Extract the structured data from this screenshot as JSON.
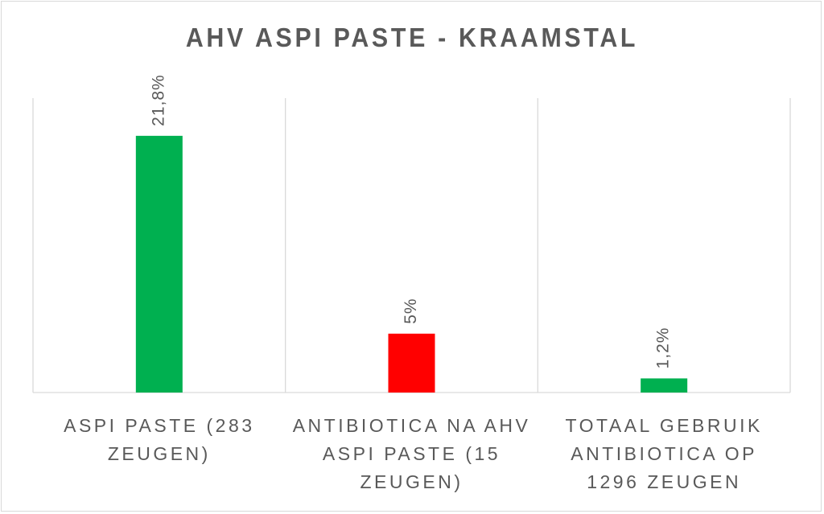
{
  "chart_data": {
    "type": "bar",
    "title": "AHV ASPI PASTE - KRAAMSTAL",
    "categories": [
      "ASPI PASTE (283 ZEUGEN)",
      "ANTIBIOTICA NA AHV ASPI PASTE (15 ZEUGEN)",
      "TOTAAL GEBRUIK ANTIBIOTICA OP 1296 ZEUGEN"
    ],
    "values": [
      21.8,
      5,
      1.2
    ],
    "data_labels": [
      "21,8%",
      "5%",
      "1,2%"
    ],
    "colors": [
      "#00b050",
      "#ff0000",
      "#00b050"
    ],
    "xlabel": "",
    "ylabel": "",
    "ylim": [
      0,
      25
    ],
    "grid": "vertical category separators",
    "legend": "none"
  }
}
